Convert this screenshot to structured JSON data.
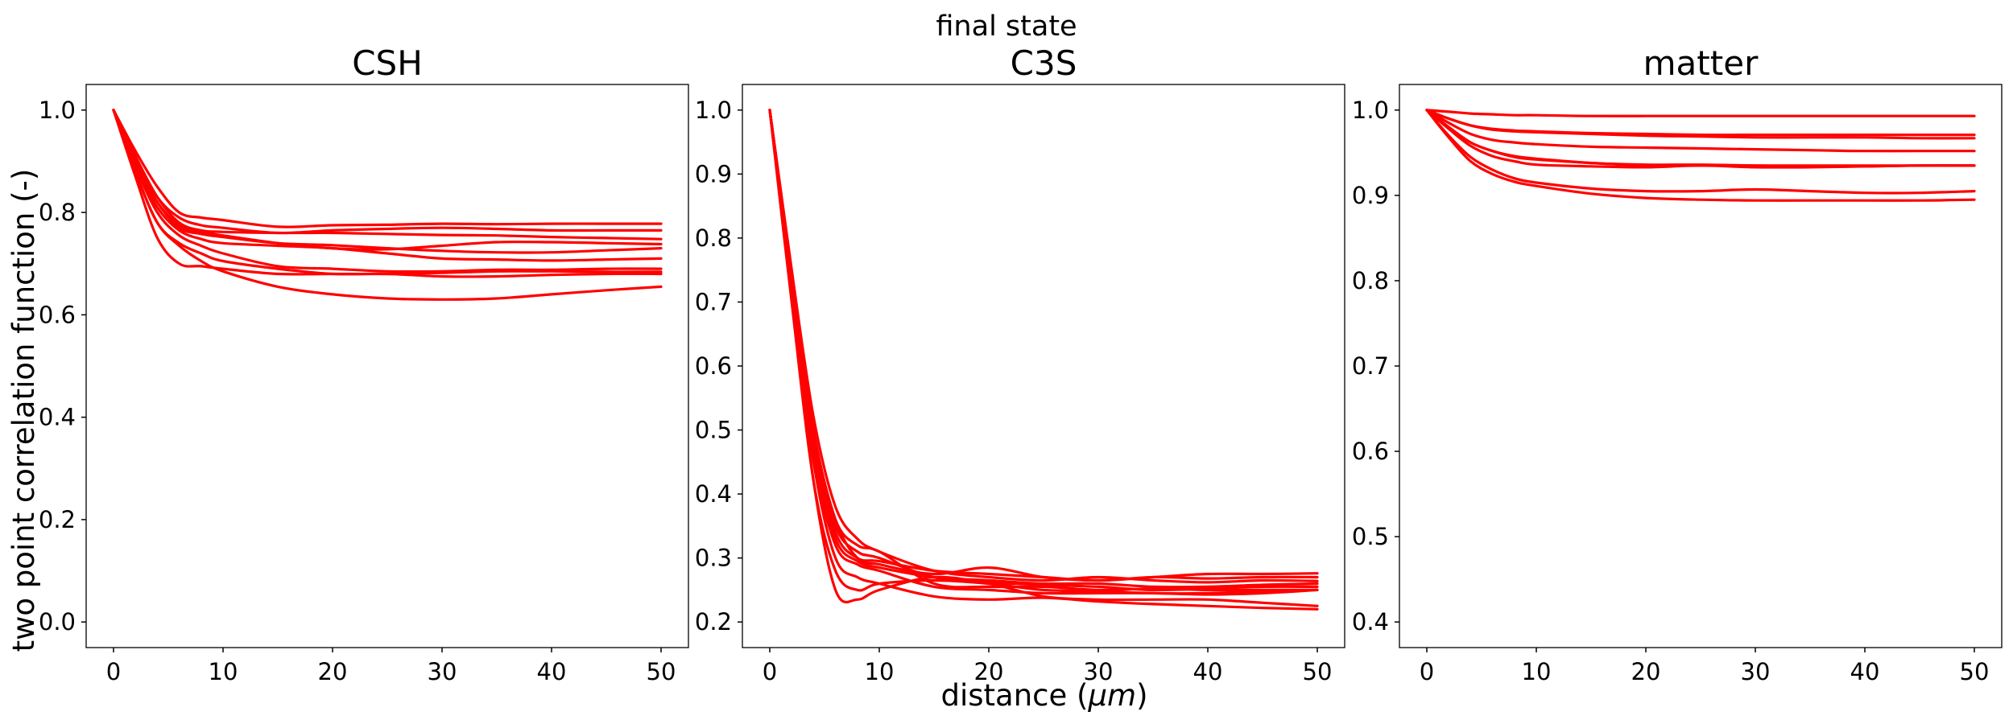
{
  "figure": {
    "suptitle": "final state",
    "xlabel": "distance ($\\mu m$)",
    "ylabel": "two point correlation function (-)"
  },
  "line_color": "#ff0000",
  "chart_data": [
    {
      "type": "line",
      "title": "CSH",
      "xlabel": "",
      "ylabel": "two point correlation function (-)",
      "xlim": [
        -2.5,
        52.5
      ],
      "ylim": [
        -0.05,
        1.05
      ],
      "xticks": [
        0,
        10,
        20,
        30,
        40,
        50
      ],
      "yticks": [
        0.0,
        0.2,
        0.4,
        0.6,
        0.8,
        1.0
      ],
      "ytick_labels": [
        "0.0",
        "0.2",
        "0.4",
        "0.6",
        "0.8",
        "1.0"
      ],
      "x": [
        0,
        2,
        4,
        6,
        8,
        10,
        15,
        20,
        25,
        30,
        35,
        40,
        45,
        50
      ],
      "series": [
        {
          "values": [
            1.0,
            0.92,
            0.85,
            0.8,
            0.79,
            0.785,
            0.772,
            0.775,
            0.776,
            0.778,
            0.777,
            0.778,
            0.778,
            0.778
          ]
        },
        {
          "values": [
            1.0,
            0.91,
            0.83,
            0.79,
            0.775,
            0.77,
            0.76,
            0.765,
            0.768,
            0.77,
            0.768,
            0.765,
            0.765,
            0.765
          ]
        },
        {
          "values": [
            1.0,
            0.91,
            0.83,
            0.78,
            0.765,
            0.762,
            0.76,
            0.76,
            0.758,
            0.756,
            0.755,
            0.752,
            0.75,
            0.748
          ]
        },
        {
          "values": [
            1.0,
            0.9,
            0.82,
            0.775,
            0.762,
            0.755,
            0.74,
            0.73,
            0.728,
            0.735,
            0.742,
            0.742,
            0.74,
            0.738
          ]
        },
        {
          "values": [
            1.0,
            0.9,
            0.82,
            0.77,
            0.758,
            0.752,
            0.74,
            0.736,
            0.73,
            0.725,
            0.722,
            0.722,
            0.726,
            0.73
          ]
        },
        {
          "values": [
            1.0,
            0.895,
            0.81,
            0.765,
            0.748,
            0.74,
            0.735,
            0.73,
            0.72,
            0.71,
            0.708,
            0.706,
            0.708,
            0.71
          ]
        },
        {
          "values": [
            1.0,
            0.89,
            0.8,
            0.755,
            0.735,
            0.72,
            0.695,
            0.69,
            0.685,
            0.685,
            0.688,
            0.688,
            0.69,
            0.69
          ]
        },
        {
          "values": [
            1.0,
            0.88,
            0.78,
            0.74,
            0.72,
            0.705,
            0.69,
            0.68,
            0.68,
            0.675,
            0.675,
            0.678,
            0.68,
            0.68
          ]
        },
        {
          "values": [
            1.0,
            0.87,
            0.75,
            0.7,
            0.695,
            0.69,
            0.68,
            0.68,
            0.68,
            0.682,
            0.685,
            0.685,
            0.684,
            0.684
          ]
        },
        {
          "values": [
            1.0,
            0.88,
            0.78,
            0.735,
            0.705,
            0.685,
            0.655,
            0.64,
            0.632,
            0.63,
            0.632,
            0.64,
            0.648,
            0.655
          ]
        }
      ]
    },
    {
      "type": "line",
      "title": "C3S",
      "xlabel": "distance ($\\mu m$)",
      "ylabel": "",
      "xlim": [
        -2.5,
        52.5
      ],
      "ylim": [
        0.16,
        1.04
      ],
      "xticks": [
        0,
        10,
        20,
        30,
        40,
        50
      ],
      "yticks": [
        0.2,
        0.3,
        0.4,
        0.5,
        0.6,
        0.7,
        0.8,
        0.9,
        1.0
      ],
      "ytick_labels": [
        "0.2",
        "0.3",
        "0.4",
        "0.5",
        "0.6",
        "0.7",
        "0.8",
        "0.9",
        "1.0"
      ],
      "x": [
        0,
        2,
        4,
        6,
        8,
        10,
        15,
        20,
        25,
        30,
        35,
        40,
        45,
        50
      ],
      "series": [
        {
          "values": [
            1.0,
            0.75,
            0.5,
            0.36,
            0.3,
            0.29,
            0.275,
            0.285,
            0.27,
            0.265,
            0.27,
            0.275,
            0.275,
            0.276
          ]
        },
        {
          "values": [
            1.0,
            0.74,
            0.48,
            0.34,
            0.3,
            0.295,
            0.28,
            0.275,
            0.27,
            0.265,
            0.27,
            0.268,
            0.27,
            0.27
          ]
        },
        {
          "values": [
            1.0,
            0.75,
            0.52,
            0.38,
            0.33,
            0.31,
            0.28,
            0.27,
            0.265,
            0.27,
            0.265,
            0.262,
            0.265,
            0.264
          ]
        },
        {
          "values": [
            1.0,
            0.72,
            0.47,
            0.33,
            0.295,
            0.285,
            0.27,
            0.265,
            0.26,
            0.26,
            0.255,
            0.255,
            0.258,
            0.26
          ]
        },
        {
          "values": [
            1.0,
            0.73,
            0.49,
            0.35,
            0.31,
            0.3,
            0.27,
            0.262,
            0.258,
            0.255,
            0.25,
            0.252,
            0.255,
            0.255
          ]
        },
        {
          "values": [
            1.0,
            0.74,
            0.5,
            0.36,
            0.32,
            0.31,
            0.26,
            0.255,
            0.255,
            0.25,
            0.252,
            0.25,
            0.25,
            0.25
          ]
        },
        {
          "values": [
            1.0,
            0.72,
            0.46,
            0.32,
            0.29,
            0.28,
            0.255,
            0.25,
            0.245,
            0.245,
            0.245,
            0.243,
            0.245,
            0.25
          ]
        },
        {
          "values": [
            1.0,
            0.7,
            0.42,
            0.28,
            0.25,
            0.26,
            0.265,
            0.26,
            0.25,
            0.248,
            0.245,
            0.245,
            0.248,
            0.25
          ]
        },
        {
          "values": [
            1.0,
            0.71,
            0.42,
            0.25,
            0.235,
            0.25,
            0.27,
            0.26,
            0.24,
            0.235,
            0.235,
            0.235,
            0.23,
            0.225
          ]
        },
        {
          "values": [
            1.0,
            0.72,
            0.45,
            0.3,
            0.27,
            0.26,
            0.24,
            0.235,
            0.238,
            0.232,
            0.228,
            0.225,
            0.222,
            0.22
          ]
        }
      ]
    },
    {
      "type": "line",
      "title": "matter",
      "xlabel": "",
      "ylabel": "",
      "xlim": [
        -2.5,
        52.5
      ],
      "ylim": [
        0.37,
        1.03
      ],
      "xticks": [
        0,
        10,
        20,
        30,
        40,
        50
      ],
      "yticks": [
        0.4,
        0.5,
        0.6,
        0.7,
        0.8,
        0.9,
        1.0
      ],
      "ytick_labels": [
        "0.4",
        "0.5",
        "0.6",
        "0.7",
        "0.8",
        "0.9",
        "1.0"
      ],
      "x": [
        0,
        2,
        4,
        6,
        8,
        10,
        15,
        20,
        25,
        30,
        35,
        40,
        45,
        50
      ],
      "series": [
        {
          "values": [
            1.0,
            0.998,
            0.996,
            0.995,
            0.994,
            0.994,
            0.993,
            0.993,
            0.993,
            0.993,
            0.993,
            0.993,
            0.993,
            0.993
          ]
        },
        {
          "values": [
            1.0,
            0.99,
            0.982,
            0.978,
            0.976,
            0.975,
            0.973,
            0.972,
            0.971,
            0.971,
            0.971,
            0.971,
            0.971,
            0.971
          ]
        },
        {
          "values": [
            1.0,
            0.99,
            0.982,
            0.977,
            0.975,
            0.974,
            0.972,
            0.97,
            0.969,
            0.968,
            0.968,
            0.968,
            0.967,
            0.967
          ]
        },
        {
          "values": [
            1.0,
            0.985,
            0.972,
            0.965,
            0.962,
            0.96,
            0.957,
            0.956,
            0.955,
            0.954,
            0.953,
            0.952,
            0.952,
            0.952
          ]
        },
        {
          "values": [
            1.0,
            0.98,
            0.962,
            0.952,
            0.946,
            0.943,
            0.938,
            0.936,
            0.936,
            0.935,
            0.935,
            0.935,
            0.935,
            0.935
          ]
        },
        {
          "values": [
            1.0,
            0.98,
            0.962,
            0.952,
            0.945,
            0.942,
            0.938,
            0.935,
            0.935,
            0.935,
            0.934,
            0.934,
            0.935,
            0.935
          ]
        },
        {
          "values": [
            1.0,
            0.978,
            0.958,
            0.946,
            0.94,
            0.936,
            0.934,
            0.933,
            0.935,
            0.933,
            0.933,
            0.934,
            0.935,
            0.935
          ]
        },
        {
          "values": [
            1.0,
            0.97,
            0.945,
            0.93,
            0.92,
            0.915,
            0.908,
            0.905,
            0.905,
            0.907,
            0.905,
            0.903,
            0.903,
            0.905
          ]
        },
        {
          "values": [
            1.0,
            0.968,
            0.94,
            0.925,
            0.916,
            0.911,
            0.902,
            0.897,
            0.895,
            0.894,
            0.894,
            0.894,
            0.894,
            0.895
          ]
        }
      ]
    }
  ]
}
